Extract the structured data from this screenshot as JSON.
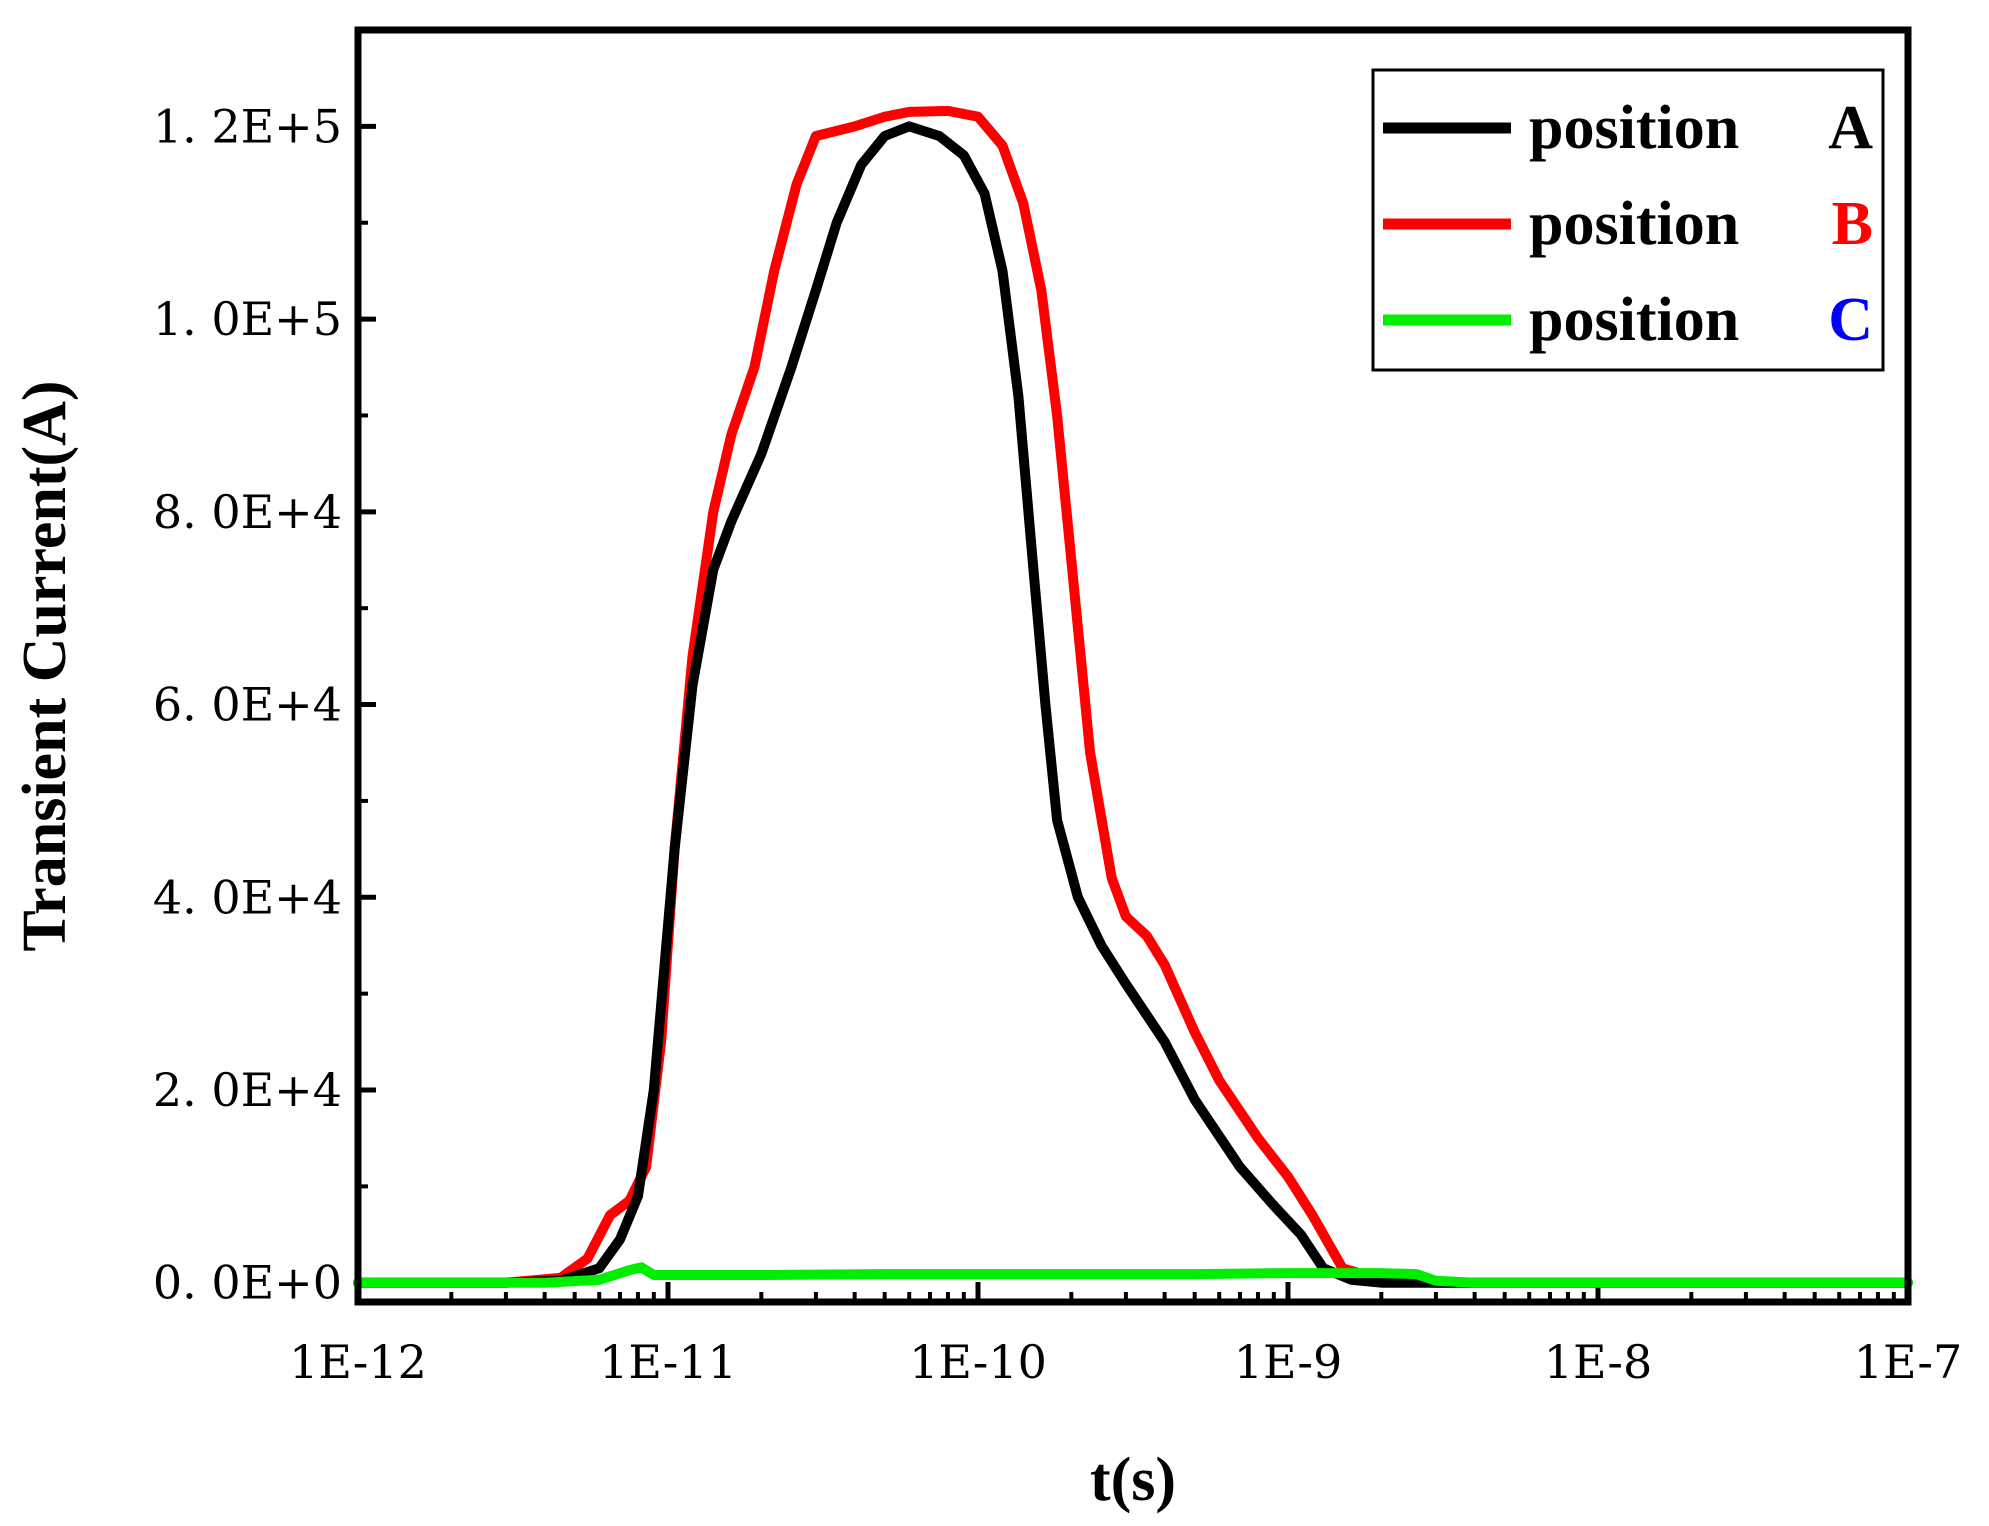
{
  "chart_data": {
    "type": "line",
    "xlabel": "t(s)",
    "ylabel": "Transient Current(A)",
    "x_scale": "log",
    "xlim": [
      1e-12,
      1e-07
    ],
    "ylim": [
      -2000,
      130000
    ],
    "x_ticks": [
      {
        "value": 1e-12,
        "label": "1E-12"
      },
      {
        "value": 1e-11,
        "label": "1E-11"
      },
      {
        "value": 1e-10,
        "label": "1E-10"
      },
      {
        "value": 1e-09,
        "label": "1E-9"
      },
      {
        "value": 1e-08,
        "label": "1E-8"
      },
      {
        "value": 1e-07,
        "label": "1E-7"
      }
    ],
    "y_ticks": [
      {
        "value": 0,
        "label": "0. 0E+0"
      },
      {
        "value": 20000,
        "label": "2. 0E+4"
      },
      {
        "value": 40000,
        "label": "4. 0E+4"
      },
      {
        "value": 60000,
        "label": "6. 0E+4"
      },
      {
        "value": 80000,
        "label": "8. 0E+4"
      },
      {
        "value": 100000,
        "label": "1. 0E+5"
      },
      {
        "value": 120000,
        "label": "1. 2E+5"
      }
    ],
    "grid": false,
    "legend_position": "top-right",
    "series": [
      {
        "name": "position",
        "tag": "A",
        "color": "#000000",
        "tag_color": "#000000",
        "points": [
          [
            1e-12,
            0
          ],
          [
            3e-12,
            0
          ],
          [
            4.5e-12,
            200
          ],
          [
            6e-12,
            1500
          ],
          [
            7e-12,
            4500
          ],
          [
            8e-12,
            9000
          ],
          [
            9e-12,
            20000
          ],
          [
            1.05e-11,
            45000
          ],
          [
            1.2e-11,
            62000
          ],
          [
            1.4e-11,
            74000
          ],
          [
            1.6e-11,
            79000
          ],
          [
            2e-11,
            86000
          ],
          [
            2.5e-11,
            95000
          ],
          [
            3e-11,
            103000
          ],
          [
            3.5e-11,
            110000
          ],
          [
            4.2e-11,
            116000
          ],
          [
            5e-11,
            119000
          ],
          [
            6e-11,
            120000
          ],
          [
            7.5e-11,
            119000
          ],
          [
            9e-11,
            117000
          ],
          [
            1.05e-10,
            113000
          ],
          [
            1.2e-10,
            105000
          ],
          [
            1.35e-10,
            92000
          ],
          [
            1.5e-10,
            75000
          ],
          [
            1.65e-10,
            60000
          ],
          [
            1.8e-10,
            48000
          ],
          [
            2.1e-10,
            40000
          ],
          [
            2.5e-10,
            35000
          ],
          [
            3e-10,
            31000
          ],
          [
            4e-10,
            25000
          ],
          [
            5e-10,
            19000
          ],
          [
            7e-10,
            12000
          ],
          [
            9e-10,
            8000
          ],
          [
            1.1e-09,
            5000
          ],
          [
            1.3e-09,
            1500
          ],
          [
            1.6e-09,
            300
          ],
          [
            2e-09,
            0
          ],
          [
            1e-07,
            0
          ]
        ]
      },
      {
        "name": "position",
        "tag": "B",
        "color": "#ff0000",
        "tag_color": "#ff0000",
        "points": [
          [
            1e-12,
            0
          ],
          [
            3e-12,
            0
          ],
          [
            4.5e-12,
            500
          ],
          [
            5.5e-12,
            2500
          ],
          [
            6.5e-12,
            7000
          ],
          [
            7.5e-12,
            8500
          ],
          [
            8.5e-12,
            12000
          ],
          [
            9.5e-12,
            25000
          ],
          [
            1.05e-11,
            45000
          ],
          [
            1.2e-11,
            65000
          ],
          [
            1.4e-11,
            80000
          ],
          [
            1.6e-11,
            88000
          ],
          [
            1.9e-11,
            95000
          ],
          [
            2.2e-11,
            105000
          ],
          [
            2.6e-11,
            114000
          ],
          [
            3e-11,
            119000
          ],
          [
            4e-11,
            120000
          ],
          [
            5e-11,
            121000
          ],
          [
            6e-11,
            121500
          ],
          [
            8e-11,
            121600
          ],
          [
            1e-10,
            121000
          ],
          [
            1.2e-10,
            118000
          ],
          [
            1.4e-10,
            112000
          ],
          [
            1.6e-10,
            103000
          ],
          [
            1.8e-10,
            90000
          ],
          [
            2e-10,
            75000
          ],
          [
            2.3e-10,
            55000
          ],
          [
            2.7e-10,
            42000
          ],
          [
            3e-10,
            38000
          ],
          [
            3.5e-10,
            36000
          ],
          [
            4e-10,
            33000
          ],
          [
            5e-10,
            26000
          ],
          [
            6e-10,
            21000
          ],
          [
            8e-10,
            15000
          ],
          [
            1e-09,
            11000
          ],
          [
            1.2e-09,
            7000
          ],
          [
            1.5e-09,
            1500
          ],
          [
            2e-09,
            300
          ],
          [
            3e-09,
            0
          ],
          [
            1e-07,
            0
          ]
        ]
      },
      {
        "name": "position",
        "tag": "C",
        "color": "#00ee00",
        "tag_color": "#0000ff",
        "points": [
          [
            1e-12,
            0
          ],
          [
            4e-12,
            0
          ],
          [
            6e-12,
            300
          ],
          [
            7.5e-12,
            1300
          ],
          [
            8.2e-12,
            1600
          ],
          [
            9e-12,
            800
          ],
          [
            2e-11,
            800
          ],
          [
            5e-11,
            900
          ],
          [
            1e-10,
            900
          ],
          [
            5e-10,
            900
          ],
          [
            1e-09,
            1000
          ],
          [
            2e-09,
            1000
          ],
          [
            2.6e-09,
            900
          ],
          [
            3e-09,
            200
          ],
          [
            4e-09,
            0
          ],
          [
            1e-07,
            0
          ]
        ]
      }
    ]
  }
}
